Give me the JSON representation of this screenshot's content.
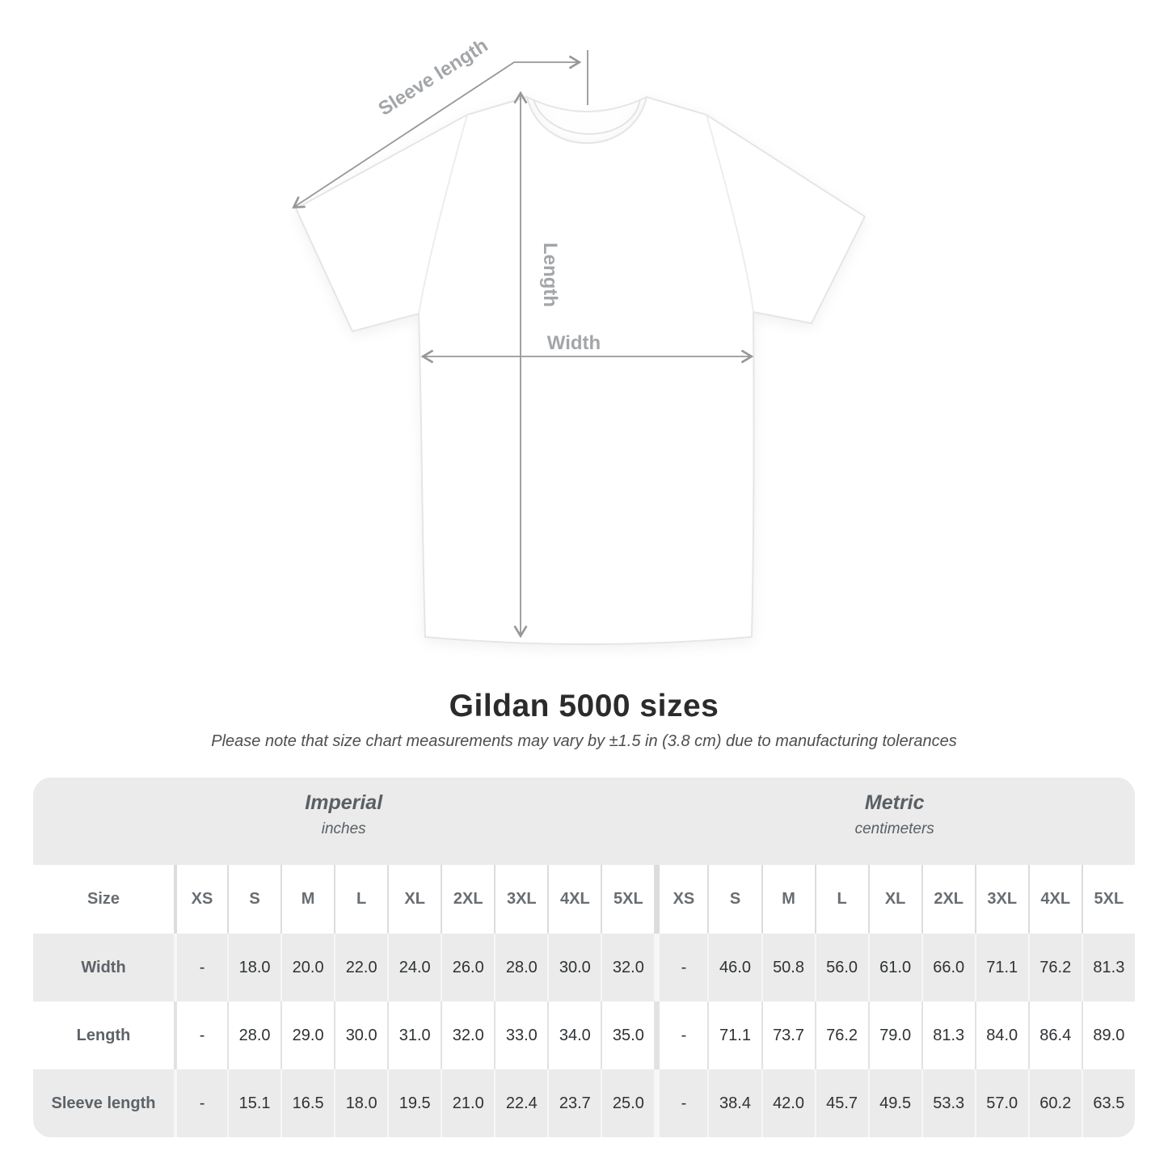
{
  "diagram": {
    "labels": {
      "sleeve_length": "Sleeve length",
      "length": "Length",
      "width": "Width"
    },
    "colors": {
      "arrow": "#979797",
      "annotation": "#a3a6a9",
      "shirt_outline": "#e5e5e5"
    }
  },
  "chart_data": {
    "type": "table",
    "title": "Gildan 5000 sizes",
    "subtitle": "Please note that size chart measurements may vary by ±1.5 in (3.8 cm) due to manufacturing tolerances",
    "column_groups": [
      {
        "label": "Imperial",
        "unit": "inches"
      },
      {
        "label": "Metric",
        "unit": "centimeters"
      }
    ],
    "size_header": "Size",
    "sizes": [
      "XS",
      "S",
      "M",
      "L",
      "XL",
      "2XL",
      "3XL",
      "4XL",
      "5XL"
    ],
    "rows": [
      {
        "label": "Width",
        "imperial": [
          "-",
          "18.0",
          "20.0",
          "22.0",
          "24.0",
          "26.0",
          "28.0",
          "30.0",
          "32.0"
        ],
        "metric": [
          "-",
          "46.0",
          "50.8",
          "56.0",
          "61.0",
          "66.0",
          "71.1",
          "76.2",
          "81.3"
        ]
      },
      {
        "label": "Length",
        "imperial": [
          "-",
          "28.0",
          "29.0",
          "30.0",
          "31.0",
          "32.0",
          "33.0",
          "34.0",
          "35.0"
        ],
        "metric": [
          "-",
          "71.1",
          "73.7",
          "76.2",
          "79.0",
          "81.3",
          "84.0",
          "86.4",
          "89.0"
        ]
      },
      {
        "label": "Sleeve length",
        "imperial": [
          "-",
          "15.1",
          "16.5",
          "18.0",
          "19.5",
          "21.0",
          "22.4",
          "23.7",
          "25.0"
        ],
        "metric": [
          "-",
          "38.4",
          "42.0",
          "45.7",
          "49.5",
          "53.3",
          "57.0",
          "60.2",
          "63.5"
        ]
      }
    ],
    "colors": {
      "band": "#ebebeb",
      "row_alt": "#ebebeb",
      "header_text": "#676d72",
      "value_text": "#2f3234"
    }
  }
}
